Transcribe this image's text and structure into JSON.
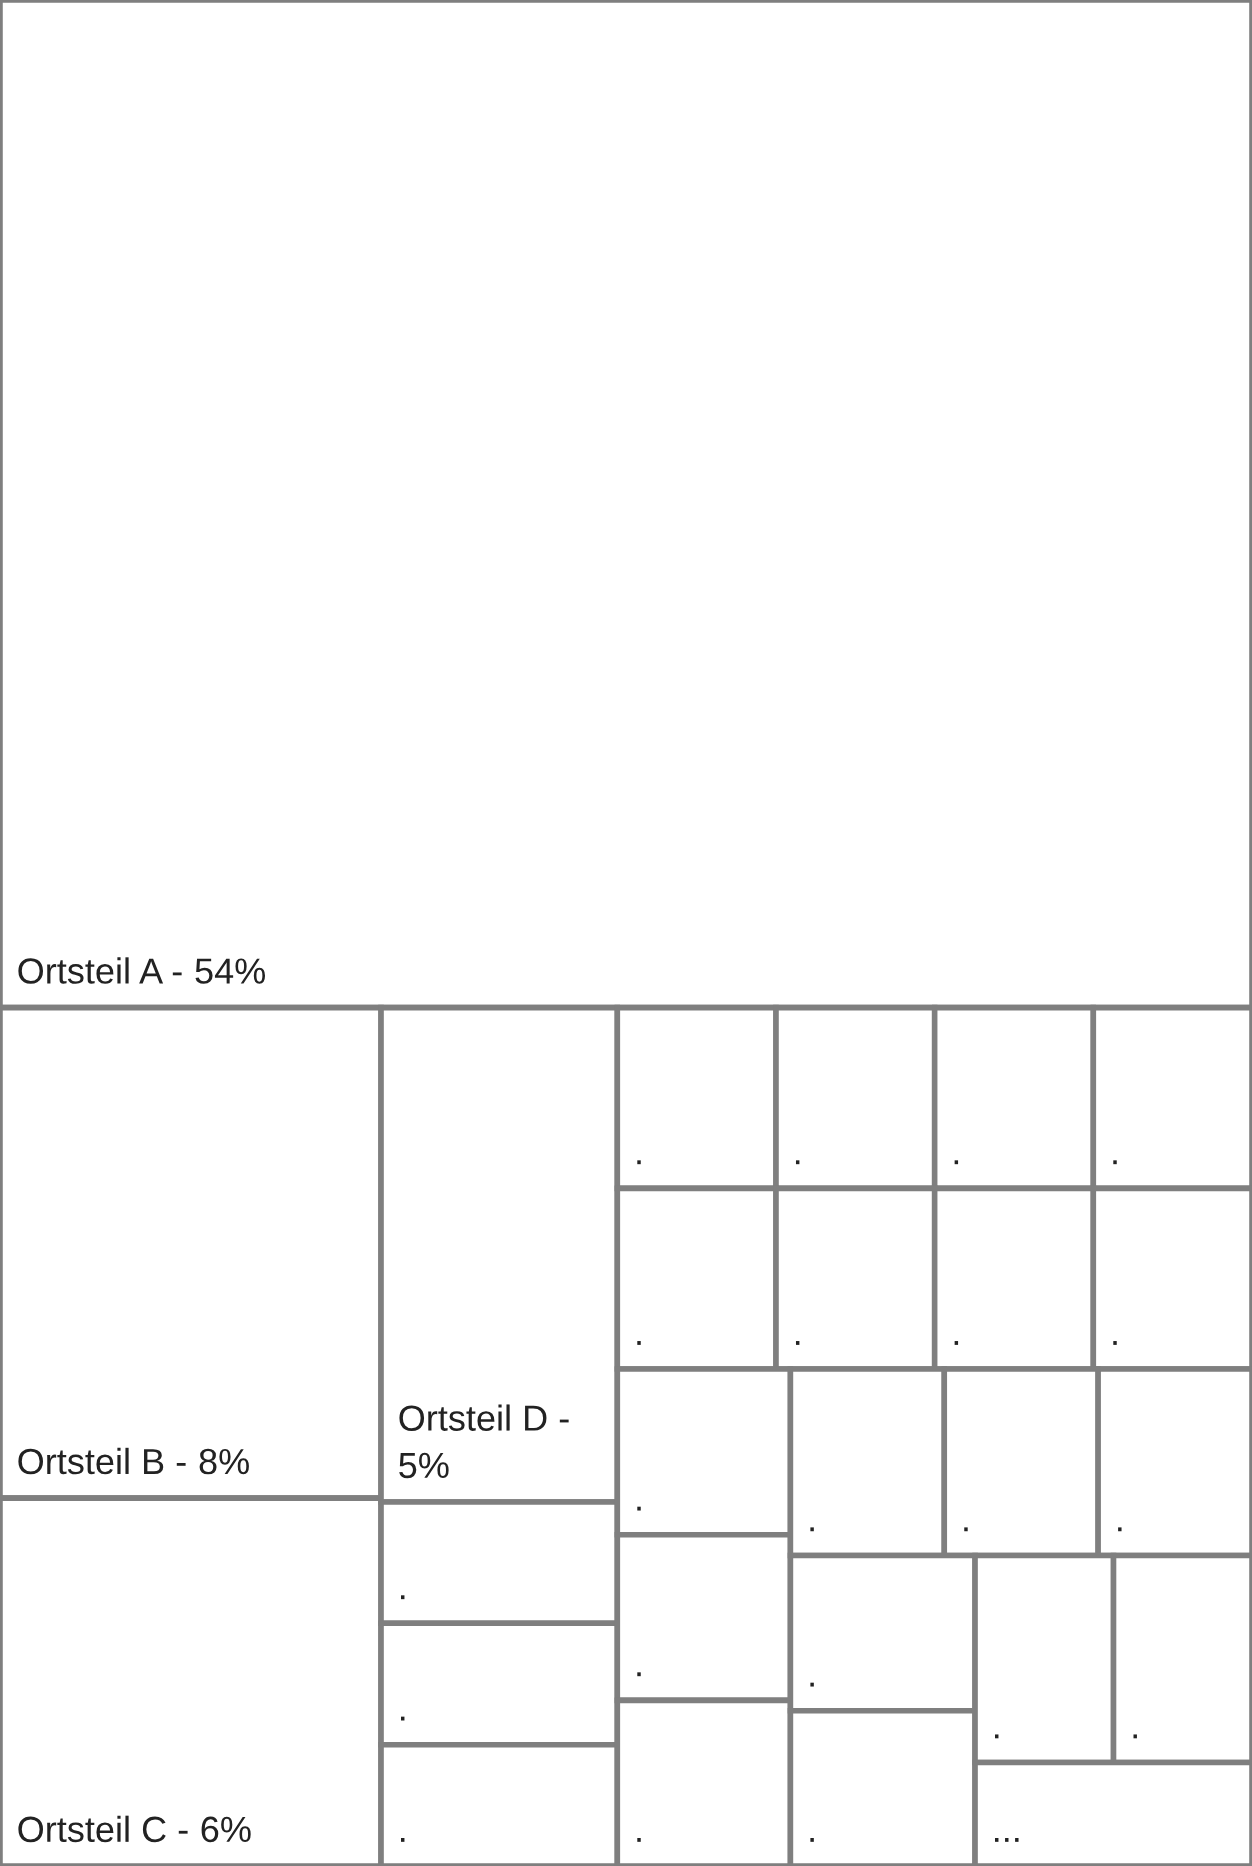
{
  "chart_data": {
    "type": "other",
    "categories": [
      "Ortsteil A -",
      "Ortsteil B -",
      "Ortsteil C -",
      "Ortsteil D -",
      ".",
      ".",
      ".",
      ".",
      ".",
      ".",
      ".",
      ".",
      ".",
      ".",
      ".",
      ".",
      ".",
      ".",
      ".",
      ".",
      ".",
      ".",
      ".",
      ".",
      ".",
      "..."
    ],
    "values": [
      54,
      8,
      6,
      5,
      null,
      null,
      null,
      null,
      null,
      null,
      null,
      null,
      null,
      null,
      null,
      null,
      null,
      null,
      null,
      null,
      null,
      null,
      null,
      null,
      null,
      null
    ],
    "value_labels": [
      "54%",
      "8%",
      "6%",
      "5%",
      null,
      null,
      null,
      null,
      null,
      null,
      null,
      null,
      null,
      null,
      null,
      null,
      null,
      null,
      null,
      null,
      null,
      null,
      null,
      null,
      null,
      null
    ]
  }
}
